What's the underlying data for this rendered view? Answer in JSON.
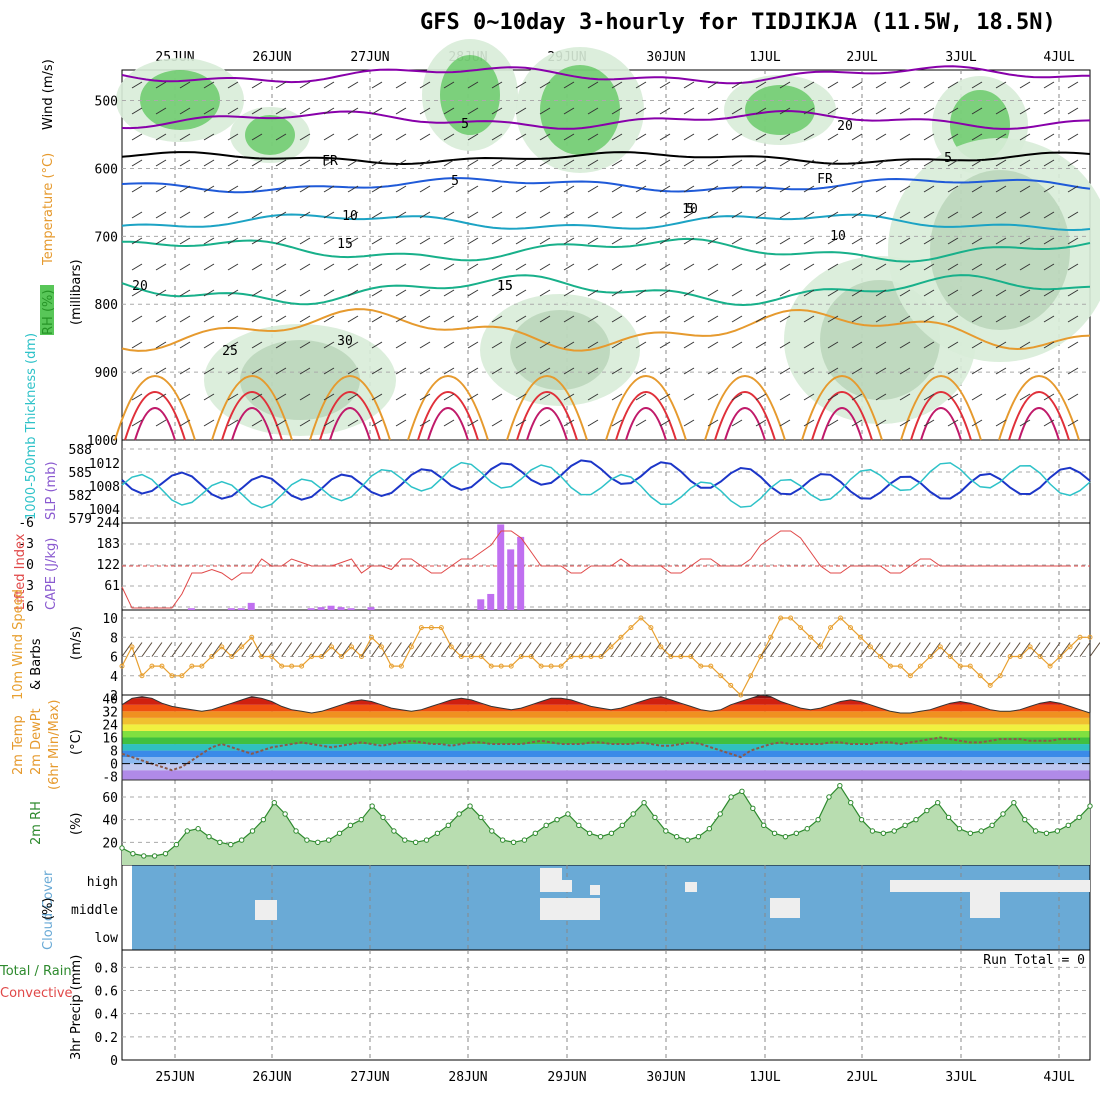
{
  "title": "GFS 0~10day 3-hourly for TIDJIKJA (11.5W, 18.5N)",
  "dates": [
    "25JUN",
    "26JUN",
    "27JUN",
    "28JUN",
    "29JUN",
    "30JUN",
    "1JUL",
    "2JUL",
    "3JUL",
    "4JUL"
  ],
  "colors": {
    "rh_green": "#2eb82e",
    "temp_purple": "#8800aa",
    "temp_blue": "#1f5ad8",
    "temp_cyan": "#1ca3c4",
    "temp_teal": "#18b08a",
    "temp_orange": "#e69a2e",
    "temp_red": "#e0303a",
    "slp": "#1c36c8",
    "thick": "#2ec2c8",
    "li": "#e04848",
    "cape": "#c070f0",
    "wind": "#e8a030",
    "rh2m": "#2e8a2e",
    "cloud": "#6aaad6"
  },
  "chart_data": [
    {
      "id": "upper",
      "type": "heatmap",
      "ylabel_parts": [
        "RH (%)",
        "Temperature (°C)",
        "Wind (m/s)"
      ],
      "yunit": "(millibars)",
      "yticks": [
        "500",
        "600",
        "700",
        "800",
        "900",
        "1000"
      ],
      "contour_labels": [
        "5",
        "10",
        "15",
        "20",
        "25",
        "30",
        "FR",
        "5",
        "10",
        "15",
        "20",
        "5",
        "FR",
        "5",
        "10",
        "15"
      ]
    },
    {
      "id": "slp",
      "type": "line",
      "ylabel": "SLP (mb)",
      "ylabel2": "1000-500mb Thickness (dm)",
      "yticks_left": [
        "588",
        "585",
        "582",
        "579"
      ],
      "yticks_right": [
        "1012",
        "1008",
        "1004"
      ]
    },
    {
      "id": "cape",
      "type": "bar",
      "ylabel": "Lifted Index",
      "ylabel2": "CAPE (J/kg)",
      "yticks_left": [
        "-6",
        "-3",
        "0",
        "3",
        "6"
      ],
      "yticks_right": [
        "244",
        "183",
        "122",
        "61"
      ],
      "cape_values": [
        0,
        0,
        0,
        0,
        0,
        0,
        0,
        5,
        0,
        0,
        0,
        5,
        5,
        20,
        0,
        0,
        0,
        0,
        0,
        5,
        8,
        12,
        8,
        5,
        0,
        8,
        0,
        0,
        0,
        0,
        0,
        0,
        0,
        0,
        0,
        0,
        30,
        45,
        240,
        170,
        205,
        0,
        0,
        0,
        0,
        0,
        0,
        0,
        0,
        0,
        0,
        0,
        0,
        0,
        0,
        0,
        0,
        0,
        0,
        0,
        0,
        0,
        0,
        0,
        0,
        0,
        0,
        0,
        0,
        0,
        0,
        0,
        0,
        0,
        0,
        0,
        0,
        0,
        0,
        0,
        0,
        0,
        0,
        0,
        0,
        0,
        0,
        0,
        0,
        0,
        0,
        0,
        0,
        0,
        0,
        0
      ],
      "li_values": [
        3,
        6,
        6,
        6,
        6,
        6,
        4,
        1,
        1,
        0.5,
        1,
        2,
        1,
        1,
        -1,
        0,
        0,
        -1,
        -0.5,
        0,
        0,
        0,
        -0.5,
        -1,
        1,
        0,
        0,
        0.5,
        -1,
        -1,
        0,
        1,
        1,
        0,
        -1,
        -1,
        -2,
        -3,
        -5,
        -5,
        -4,
        -2,
        0,
        0,
        0,
        1,
        1,
        0,
        0,
        0,
        -1,
        0,
        0,
        0,
        0,
        1,
        1,
        0,
        -1,
        -1,
        0,
        0,
        0,
        -1,
        -3,
        -4,
        -5,
        -5,
        -4,
        -2,
        0,
        1,
        1,
        0,
        0,
        0,
        0,
        1,
        1,
        0,
        -1,
        -1,
        0,
        0,
        0,
        0,
        0,
        0,
        0,
        0,
        0,
        0,
        0,
        0,
        0,
        0
      ]
    },
    {
      "id": "wind10",
      "type": "line",
      "ylabel": "10m Wind Speed",
      "ylabel2": "& Barbs",
      "yunit": "(m/s)",
      "yticks": [
        "10",
        "8",
        "6",
        "4",
        "2"
      ],
      "values": [
        5,
        7,
        4,
        5,
        5,
        4,
        4,
        5,
        5,
        6,
        7,
        6,
        7,
        8,
        6,
        6,
        5,
        5,
        5,
        6,
        6,
        7,
        6,
        7,
        6,
        8,
        7,
        5,
        5,
        7,
        9,
        9,
        9,
        7,
        6,
        6,
        6,
        5,
        5,
        5,
        6,
        6,
        5,
        5,
        5,
        6,
        6,
        6,
        6,
        7,
        8,
        9,
        10,
        9,
        7,
        6,
        6,
        6,
        5,
        5,
        4,
        3,
        2,
        4,
        6,
        8,
        10,
        10,
        9,
        8,
        7,
        9,
        10,
        9,
        8,
        7,
        6,
        5,
        5,
        4,
        5,
        6,
        7,
        6,
        5,
        5,
        4,
        3,
        4,
        6,
        6,
        7,
        6,
        5,
        6,
        7,
        8,
        8
      ]
    },
    {
      "id": "temp2m",
      "type": "area",
      "ylabel": "2m Temp",
      "ylabel2": "2m DewPt",
      "ylabel3": "(6hr Min/Max)",
      "yunit": "(°C)",
      "yticks": [
        "40",
        "32",
        "24",
        "16",
        "8",
        "0",
        "-8"
      ],
      "temp_values": [
        36,
        40,
        41,
        40,
        37,
        35,
        34,
        33,
        32,
        33,
        35,
        37,
        39,
        41,
        40,
        38,
        35,
        33,
        32,
        31,
        32,
        34,
        36,
        38,
        39,
        38,
        36,
        34,
        33,
        32,
        33,
        35,
        37,
        39,
        40,
        39,
        37,
        35,
        34,
        33,
        34,
        36,
        38,
        40,
        40,
        39,
        37,
        35,
        34,
        33,
        34,
        36,
        38,
        40,
        41,
        39,
        37,
        35,
        33,
        32,
        33,
        36,
        38,
        40,
        42,
        41,
        38,
        36,
        34,
        33,
        34,
        36,
        38,
        39,
        38,
        36,
        34,
        32,
        31,
        31,
        32,
        33,
        35,
        37,
        38,
        37,
        35,
        33,
        32,
        32,
        33,
        35,
        37,
        38,
        37,
        35,
        33,
        31
      ],
      "dew_values": [
        6,
        4,
        2,
        0,
        -2,
        -4,
        -2,
        2,
        6,
        10,
        12,
        10,
        8,
        6,
        8,
        10,
        11,
        12,
        13,
        12,
        11,
        10,
        11,
        12,
        13,
        12,
        11,
        12,
        13,
        14,
        13,
        12,
        12,
        11,
        12,
        13,
        13,
        12,
        12,
        12,
        12,
        13,
        14,
        13,
        12,
        12,
        12,
        13,
        13,
        12,
        12,
        12,
        13,
        12,
        11,
        11,
        12,
        13,
        12,
        10,
        8,
        6,
        4,
        8,
        10,
        12,
        13,
        12,
        12,
        12,
        12,
        13,
        13,
        12,
        12,
        12,
        13,
        13,
        12,
        13,
        14,
        15,
        16,
        15,
        14,
        13,
        13,
        14,
        15,
        15,
        15,
        14,
        14,
        14,
        15,
        15,
        15
      ]
    },
    {
      "id": "rh2m",
      "type": "area",
      "ylabel": "2m RH",
      "yunit": "(%)",
      "yticks": [
        "60",
        "40",
        "20"
      ],
      "values": [
        15,
        10,
        8,
        8,
        10,
        18,
        30,
        32,
        25,
        20,
        18,
        22,
        30,
        40,
        55,
        45,
        30,
        22,
        20,
        22,
        28,
        35,
        40,
        52,
        42,
        30,
        22,
        20,
        22,
        28,
        35,
        45,
        52,
        42,
        30,
        22,
        20,
        22,
        28,
        35,
        40,
        45,
        35,
        28,
        25,
        28,
        35,
        45,
        55,
        42,
        30,
        25,
        22,
        25,
        32,
        45,
        60,
        65,
        50,
        35,
        28,
        25,
        28,
        32,
        40,
        60,
        70,
        55,
        40,
        30,
        28,
        30,
        35,
        40,
        48,
        55,
        42,
        32,
        28,
        30,
        35,
        45,
        55,
        40,
        30,
        28,
        30,
        35,
        42,
        52
      ]
    },
    {
      "id": "cloud",
      "type": "area",
      "ylabel": "Cloud Cover",
      "yunit": "(%)",
      "yticks": [
        "high",
        "middle",
        "low"
      ]
    },
    {
      "id": "precip",
      "type": "bar",
      "ylabel": "3hr Precip (mm)",
      "ylabel2": "Total / Rain",
      "ylabel3": "Convective",
      "yticks": [
        "0.8",
        "0.6",
        "0.4",
        "0.2",
        "0"
      ],
      "annotation": "Run Total = 0"
    }
  ]
}
